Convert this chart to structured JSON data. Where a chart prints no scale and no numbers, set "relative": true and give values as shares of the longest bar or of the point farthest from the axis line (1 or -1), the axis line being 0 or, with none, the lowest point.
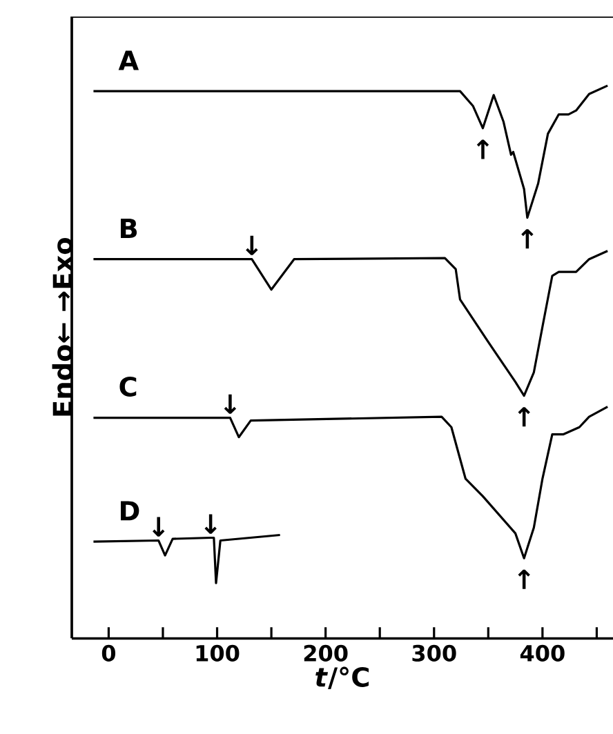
{
  "chart_data": {
    "type": "line",
    "relative": true,
    "xlabel": "*t*/°C",
    "ylabel": "Endo←  →Exo",
    "marker": "none",
    "line_style": "solid",
    "xlim": [
      -34,
      465
    ],
    "xticks": [
      0,
      {
        "value": 50,
        "label": null
      },
      100,
      {
        "value": 150,
        "label": null
      },
      200,
      {
        "value": 250,
        "label": null
      },
      300,
      {
        "value": 350,
        "label": null
      },
      400,
      {
        "value": 450,
        "label": null
      }
    ],
    "series": [
      {
        "name": "A",
        "color": "#000000",
        "x": [
          -14,
          324,
          336,
          345,
          355,
          364,
          371,
          373,
          383,
          386,
          396,
          405,
          415,
          424,
          431,
          443,
          460
        ],
        "values": [
          0.99,
          0.99,
          0.963,
          0.923,
          0.983,
          0.935,
          0.875,
          0.88,
          0.813,
          0.761,
          0.823,
          0.913,
          0.948,
          0.948,
          0.955,
          0.985,
          1
        ]
      },
      {
        "name": "B",
        "color": "#000000",
        "x": [
          -14,
          132,
          150,
          171,
          310,
          320,
          324,
          349,
          375,
          383,
          392,
          400,
          409,
          415,
          431,
          443,
          460
        ],
        "values": [
          0.686,
          0.686,
          0.631,
          0.686,
          0.688,
          0.668,
          0.613,
          0.539,
          0.464,
          0.439,
          0.481,
          0.564,
          0.656,
          0.663,
          0.663,
          0.686,
          0.701
        ]
      },
      {
        "name": "C",
        "color": "#000000",
        "x": [
          -14,
          112,
          120,
          131,
          307,
          316,
          329,
          345,
          375,
          383,
          392,
          400,
          409,
          419,
          434,
          443,
          460
        ],
        "values": [
          0.399,
          0.399,
          0.364,
          0.394,
          0.401,
          0.382,
          0.289,
          0.257,
          0.19,
          0.145,
          0.2,
          0.289,
          0.369,
          0.369,
          0.382,
          0.401,
          0.419
        ]
      },
      {
        "name": "D",
        "color": "#000000",
        "x": [
          -14,
          46,
          52,
          59,
          94,
          97,
          99,
          103,
          158
        ],
        "values": [
          0.175,
          0.177,
          0.15,
          0.18,
          0.182,
          0.182,
          0.1,
          0.177,
          0.187
        ]
      }
    ],
    "annotations": [
      {
        "text": "↑",
        "x": 345,
        "y": 0.923
      },
      {
        "text": "↑",
        "x": 386,
        "y": 0.761
      },
      {
        "text": "↓",
        "x": 132,
        "y": 0.686
      },
      {
        "text": "↑",
        "x": 383,
        "y": 0.439
      },
      {
        "text": "↓",
        "x": 112,
        "y": 0.399
      },
      {
        "text": "↑",
        "x": 383,
        "y": 0.145
      },
      {
        "text": "↓",
        "x": 46,
        "y": 0.177
      },
      {
        "text": "↓",
        "x": 94,
        "y": 0.182
      }
    ]
  }
}
